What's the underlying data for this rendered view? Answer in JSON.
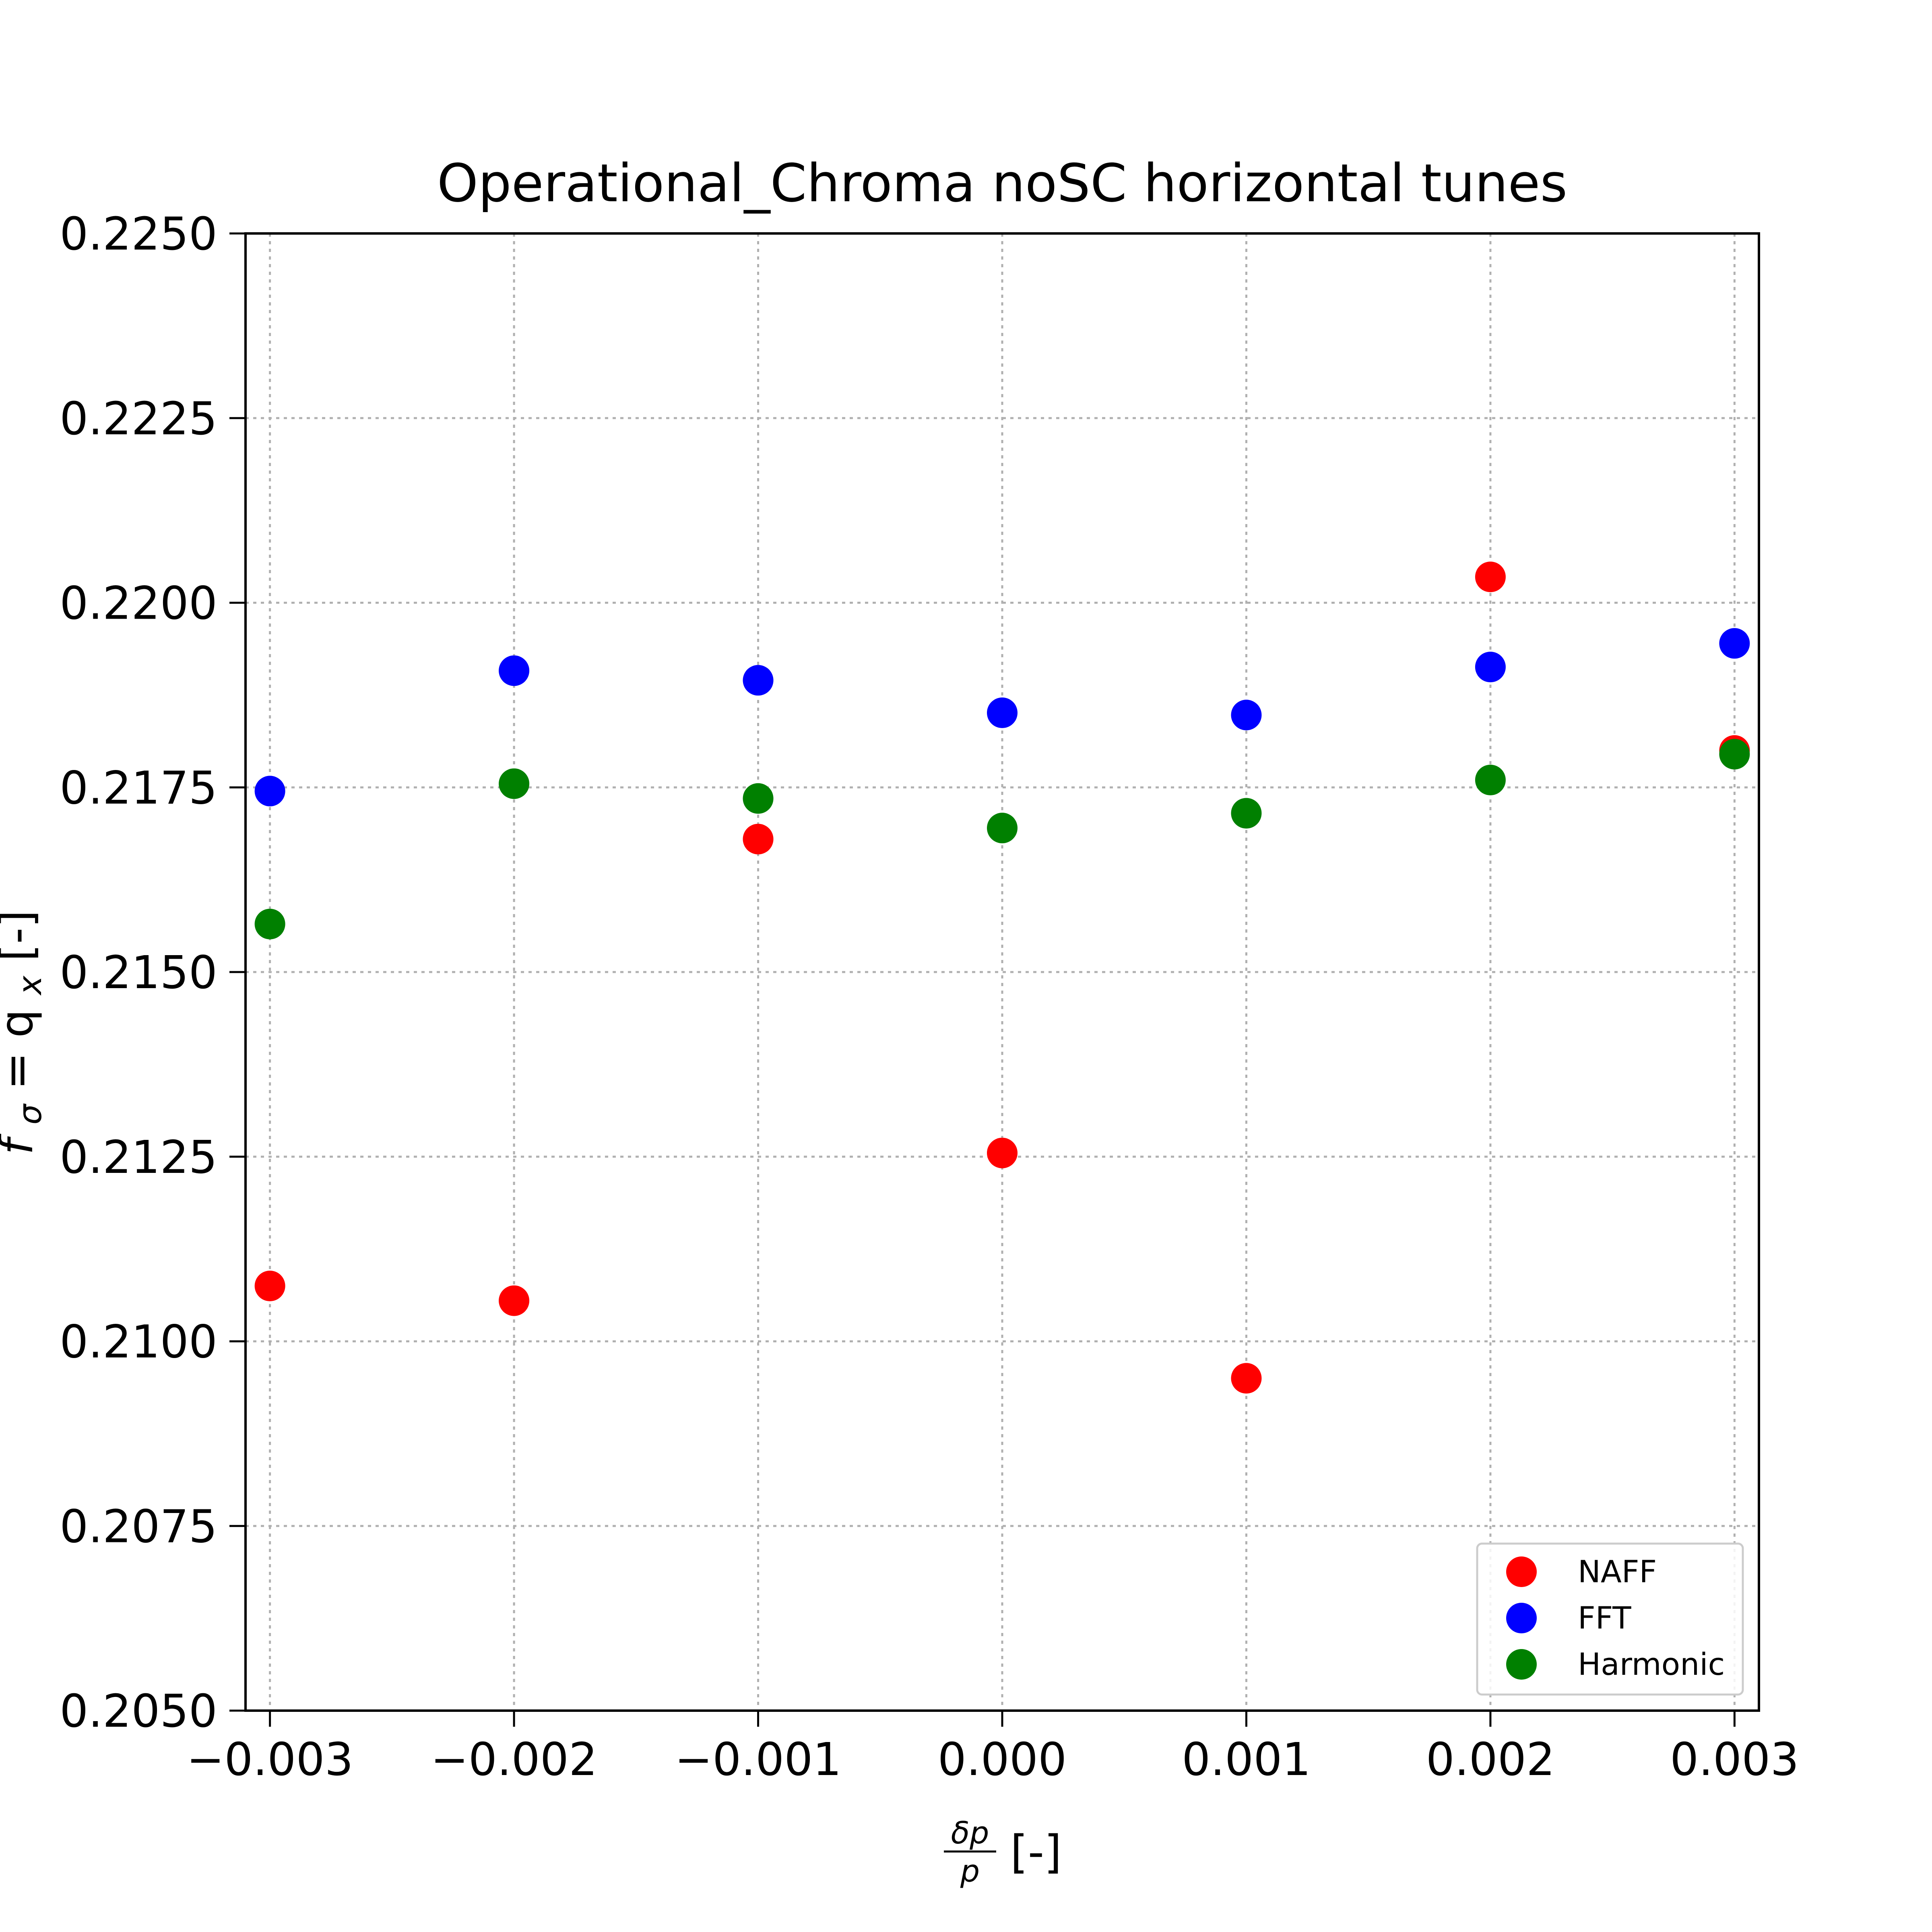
{
  "chart_data": {
    "type": "scatter",
    "title": "Operational_Chroma noSC horizontal tunes",
    "xlabel": {
      "frac_num": "δp",
      "frac_den": "p",
      "suffix": "[-]"
    },
    "ylabel": {
      "symbol": "f",
      "sub": "σ",
      "eq": " = q",
      "sub2": "x",
      "suffix": " [-]"
    },
    "xlim": [
      -0.0031,
      0.0031
    ],
    "ylim": [
      0.205,
      0.225
    ],
    "x_ticks": [
      -0.003,
      -0.002,
      -0.001,
      0.0,
      0.001,
      0.002,
      0.003
    ],
    "x_tick_labels": [
      "−0.003",
      "−0.002",
      "−0.001",
      "0.000",
      "0.001",
      "0.002",
      "0.003"
    ],
    "y_ticks": [
      0.205,
      0.2075,
      0.21,
      0.2125,
      0.215,
      0.2175,
      0.22,
      0.2225,
      0.225
    ],
    "y_tick_labels": [
      "0.2050",
      "0.2075",
      "0.2100",
      "0.2125",
      "0.2150",
      "0.2175",
      "0.2200",
      "0.2225",
      "0.2250"
    ],
    "grid": true,
    "legend_position": "bottom-right",
    "series": [
      {
        "name": "NAFF",
        "color": "#ff0000",
        "x": [
          -0.003,
          -0.002,
          -0.001,
          0.0,
          0.001,
          0.002,
          0.003
        ],
        "y": [
          0.21075,
          0.21055,
          0.2168,
          0.21255,
          0.2095,
          0.22035,
          0.218
        ]
      },
      {
        "name": "FFT",
        "color": "#0000ff",
        "x": [
          -0.003,
          -0.002,
          -0.001,
          0.0,
          0.001,
          0.002,
          0.003
        ],
        "y": [
          0.21745,
          0.21908,
          0.21895,
          0.21851,
          0.21848,
          0.21913,
          0.21945
        ]
      },
      {
        "name": "Harmonic",
        "color": "#008000",
        "x": [
          -0.003,
          -0.002,
          -0.001,
          0.0,
          0.001,
          0.002,
          0.003
        ],
        "y": [
          0.21565,
          0.21755,
          0.21735,
          0.21695,
          0.21715,
          0.2176,
          0.21795
        ]
      }
    ]
  }
}
